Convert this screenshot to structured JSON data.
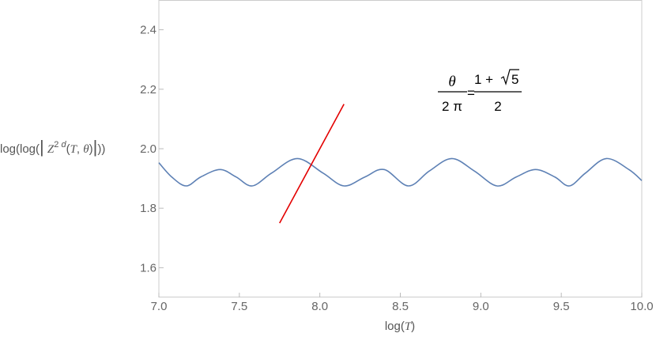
{
  "chart_data": {
    "type": "line",
    "title": "",
    "xlabel": "log(T)",
    "ylabel": "log(log(|Z^{2d}(T, θ)|))",
    "xlim": [
      7.0,
      10.0
    ],
    "ylim": [
      1.5,
      2.5
    ],
    "x_ticks": [
      "7.0",
      "7.5",
      "8.0",
      "8.5",
      "9.0",
      "9.5",
      "10.0"
    ],
    "y_ticks": [
      "1.6",
      "1.8",
      "2.0",
      "2.2",
      "2.4"
    ],
    "grid": false,
    "frame_color": "#cccccc",
    "series": [
      {
        "color": "#5e81b5",
        "x": [
          7.0,
          7.08,
          7.17,
          7.26,
          7.38,
          7.48,
          7.58,
          7.7,
          7.86,
          8.02,
          8.15,
          8.28,
          8.4,
          8.55,
          8.68,
          8.82,
          8.96,
          9.1,
          9.22,
          9.34,
          9.46,
          9.55,
          9.65,
          9.78,
          9.92,
          10.0
        ],
        "y": [
          1.953,
          1.905,
          1.875,
          1.905,
          1.93,
          1.905,
          1.875,
          1.918,
          1.967,
          1.918,
          1.875,
          1.905,
          1.93,
          1.875,
          1.925,
          1.967,
          1.925,
          1.875,
          1.905,
          1.93,
          1.905,
          1.875,
          1.918,
          1.967,
          1.93,
          1.893
        ]
      },
      {
        "color": "#e30000",
        "x": [
          7.75,
          8.15
        ],
        "y": [
          1.75,
          2.15
        ]
      }
    ],
    "annotation": {
      "numerator_left": "θ",
      "denominator_left": "2 π",
      "equals": "=",
      "numerator_right_prefix": "1 + ",
      "sqrt_arg": "5",
      "denominator_right": "2"
    }
  }
}
